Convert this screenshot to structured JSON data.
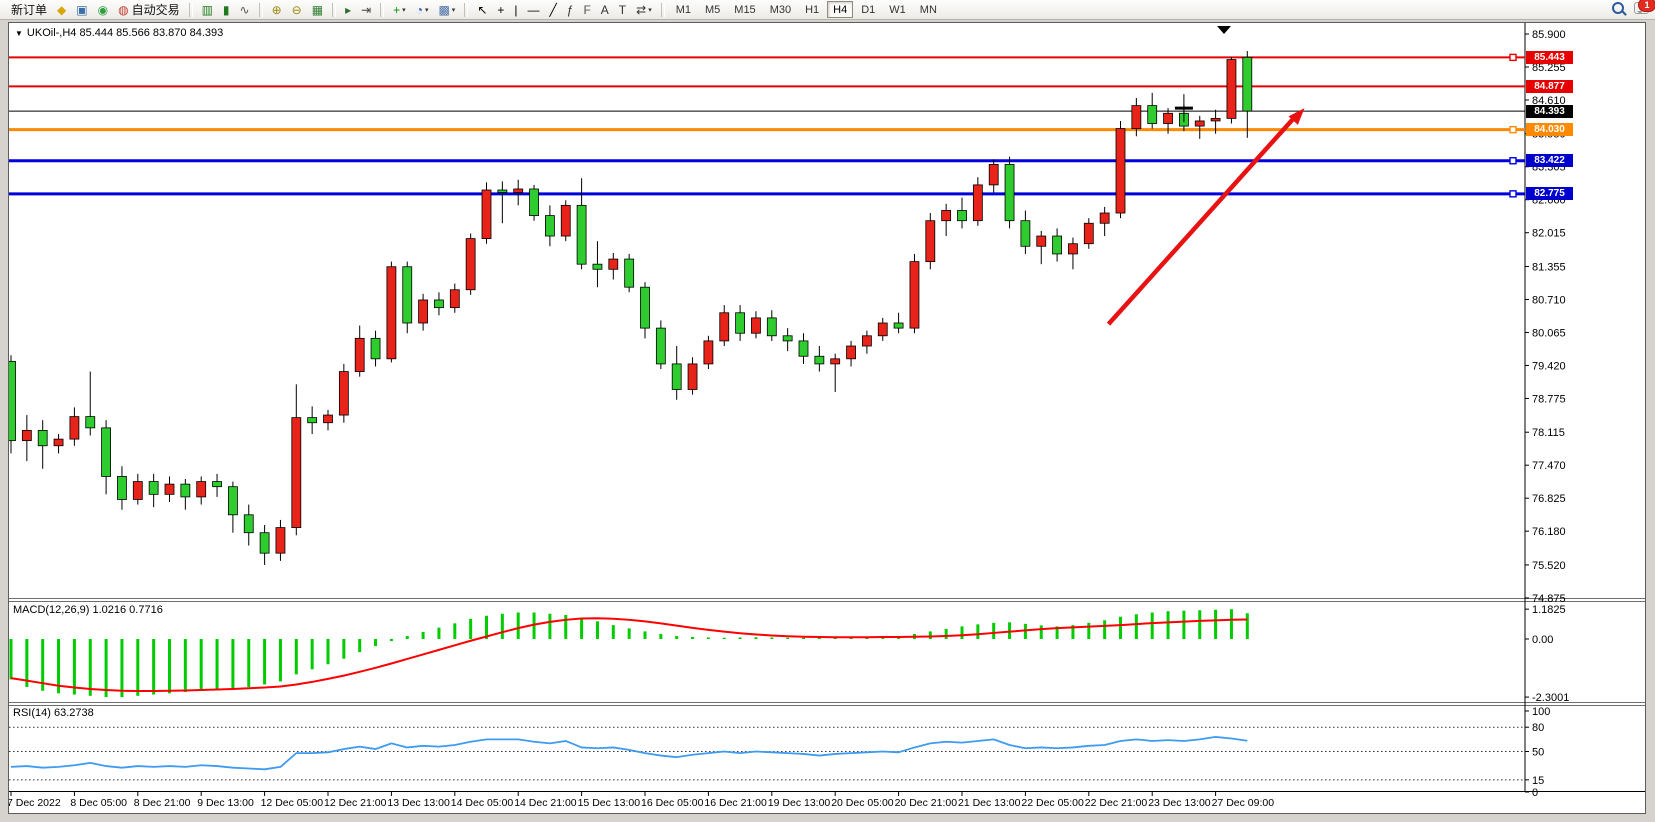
{
  "toolbar": {
    "notification_count": "1",
    "groups": [
      {
        "items": [
          {
            "name": "new-order-button",
            "label": "新订单",
            "interactable": true
          },
          {
            "name": "gold-bars-icon",
            "glyph": "◆",
            "color": "#d9a60a",
            "interactable": true
          },
          {
            "name": "user-terminal-icon",
            "glyph": "▣",
            "color": "#3a6ea5",
            "interactable": true
          },
          {
            "name": "radar-icon",
            "glyph": "◉",
            "color": "#2e9e3e",
            "interactable": true
          },
          {
            "name": "autotrade-button",
            "glyph": "◍",
            "color": "#c23b2e",
            "label": "自动交易",
            "interactable": true
          }
        ]
      },
      {
        "items": [
          {
            "name": "bar-chart-icon",
            "glyph": "▥",
            "color": "#1f7a1f",
            "interactable": true
          },
          {
            "name": "candlestick-chart-icon",
            "glyph": "▮",
            "color": "#1f7a1f",
            "interactable": true
          },
          {
            "name": "line-chart-icon",
            "glyph": "∿",
            "color": "#555555",
            "interactable": true
          }
        ]
      },
      {
        "items": [
          {
            "name": "zoom-in-icon",
            "glyph": "⊕",
            "color": "#9a8a10",
            "interactable": true
          },
          {
            "name": "zoom-out-icon",
            "glyph": "⊖",
            "color": "#9a8a10",
            "interactable": true
          },
          {
            "name": "tile-windows-icon",
            "glyph": "▦",
            "color": "#2e7d32",
            "interactable": true
          }
        ]
      },
      {
        "items": [
          {
            "name": "auto-scroll-icon",
            "glyph": "▸",
            "color": "#2b6e2b",
            "interactable": true
          },
          {
            "name": "chart-shift-icon",
            "glyph": "⇥",
            "color": "#444444",
            "interactable": true
          }
        ]
      },
      {
        "items": [
          {
            "name": "add-indicator-icon",
            "glyph": "+",
            "color": "#0a8f0a",
            "dropdown": true,
            "interactable": true
          },
          {
            "name": "period-clock-icon",
            "glyph": "◔",
            "color": "#1a56c4",
            "dropdown": true,
            "interactable": true
          },
          {
            "name": "template-icon",
            "glyph": "▩",
            "color": "#4a6ea5",
            "dropdown": true,
            "interactable": true
          }
        ]
      },
      {
        "items": [
          {
            "name": "cursor-icon",
            "glyph": "↖",
            "color": "#000000",
            "interactable": true
          },
          {
            "name": "crosshair-icon",
            "glyph": "+",
            "color": "#000000",
            "interactable": true
          },
          {
            "name": "vertical-line-icon",
            "glyph": "|",
            "color": "#000000",
            "interactable": true
          },
          {
            "name": "horizontal-line-icon",
            "glyph": "—",
            "color": "#000000",
            "interactable": true
          },
          {
            "name": "trendline-icon",
            "glyph": "╱",
            "color": "#000000",
            "interactable": true
          },
          {
            "name": "fibonacci-icon",
            "glyph": "ƒ",
            "color": "#333333",
            "interactable": true
          },
          {
            "name": "fibo-expansion-icon",
            "glyph": "F",
            "color": "#555555",
            "interactable": true
          },
          {
            "name": "text-icon",
            "glyph": "A",
            "color": "#333333",
            "interactable": true
          },
          {
            "name": "text-label-icon",
            "glyph": "T",
            "color": "#333333",
            "interactable": true
          },
          {
            "name": "arrows-shapes-icon",
            "glyph": "⇄",
            "color": "#333333",
            "dropdown": true,
            "interactable": true
          }
        ]
      }
    ],
    "timeframes": [
      "M1",
      "M5",
      "M15",
      "M30",
      "H1",
      "H4",
      "D1",
      "W1",
      "MN"
    ],
    "active_timeframe": "H4"
  },
  "chart": {
    "title_text": "UKOil-,H4  85.444 85.566 83.870 84.393",
    "symbol": "UKOil-",
    "timeframe": "H4",
    "ohlc": {
      "open": "85.444",
      "high": "85.566",
      "low": "83.870",
      "close": "84.393"
    }
  },
  "chart_data": {
    "type": "candlestick",
    "symbol": "UKOil-",
    "period": "H4",
    "price_axis_ticks": [
      "85.900",
      "85.255",
      "84.610",
      "83.950",
      "83.305",
      "82.660",
      "82.015",
      "81.355",
      "80.710",
      "80.065",
      "79.420",
      "78.775",
      "78.115",
      "77.470",
      "76.825",
      "76.180",
      "75.520",
      "74.875"
    ],
    "price_axis_range": [
      74.875,
      85.9
    ],
    "time_labels": [
      "7 Dec 2022",
      "8 Dec 05:00",
      "8 Dec 21:00",
      "9 Dec 13:00",
      "12 Dec 05:00",
      "12 Dec 21:00",
      "13 Dec 13:00",
      "14 Dec 05:00",
      "14 Dec 21:00",
      "15 Dec 13:00",
      "16 Dec 05:00",
      "16 Dec 21:00",
      "19 Dec 13:00",
      "20 Dec 05:00",
      "20 Dec 21:00",
      "21 Dec 13:00",
      "22 Dec 05:00",
      "22 Dec 21:00",
      "23 Dec 13:00",
      "27 Dec 09:00"
    ],
    "time_label_candle_indices": [
      0,
      4,
      8,
      12,
      16,
      20,
      24,
      28,
      32,
      36,
      40,
      44,
      48,
      52,
      56,
      60,
      64,
      68,
      72,
      76
    ],
    "colors": {
      "bull_candle": "#e8231a",
      "bear_candle": "#2ecc2e",
      "candle_outline": "#000000",
      "macd_histogram": "#00cc00",
      "macd_signal": "#ff0000",
      "rsi_line": "#3e9bf0",
      "annotation_arrow": "#e81212",
      "level_red": "#e60000",
      "level_orange": "#ff8a00",
      "level_blue": "#0000dd",
      "price_marker": "#000000"
    },
    "candles": [
      [
        79.5,
        79.62,
        77.7,
        77.95
      ],
      [
        77.95,
        78.45,
        77.55,
        78.15
      ],
      [
        78.15,
        78.35,
        77.4,
        77.85
      ],
      [
        77.85,
        78.08,
        77.7,
        77.98
      ],
      [
        77.98,
        78.6,
        77.85,
        78.42
      ],
      [
        78.42,
        79.3,
        78.05,
        78.2
      ],
      [
        78.2,
        78.35,
        76.9,
        77.25
      ],
      [
        77.25,
        77.45,
        76.6,
        76.8
      ],
      [
        76.8,
        77.3,
        76.7,
        77.15
      ],
      [
        77.15,
        77.3,
        76.65,
        76.9
      ],
      [
        76.9,
        77.25,
        76.75,
        77.1
      ],
      [
        77.1,
        77.2,
        76.6,
        76.85
      ],
      [
        76.85,
        77.25,
        76.7,
        77.15
      ],
      [
        77.15,
        77.3,
        76.85,
        77.05
      ],
      [
        77.05,
        77.15,
        76.15,
        76.5
      ],
      [
        76.5,
        76.7,
        75.9,
        76.15
      ],
      [
        76.15,
        76.3,
        75.52,
        75.75
      ],
      [
        75.75,
        76.4,
        75.6,
        76.25
      ],
      [
        76.25,
        79.05,
        76.1,
        78.4
      ],
      [
        78.4,
        78.62,
        78.08,
        78.3
      ],
      [
        78.3,
        78.55,
        78.15,
        78.45
      ],
      [
        78.45,
        79.45,
        78.3,
        79.3
      ],
      [
        79.3,
        80.2,
        79.2,
        79.95
      ],
      [
        79.95,
        80.1,
        79.4,
        79.55
      ],
      [
        79.55,
        81.45,
        79.48,
        81.35
      ],
      [
        81.35,
        81.45,
        80.05,
        80.25
      ],
      [
        80.25,
        80.82,
        80.1,
        80.7
      ],
      [
        80.7,
        80.85,
        80.4,
        80.55
      ],
      [
        80.55,
        81.02,
        80.45,
        80.9
      ],
      [
        80.9,
        82.0,
        80.8,
        81.9
      ],
      [
        81.9,
        83.0,
        81.8,
        82.85
      ],
      [
        82.85,
        83.02,
        82.2,
        82.8
      ],
      [
        82.8,
        83.05,
        82.55,
        82.87
      ],
      [
        82.87,
        82.95,
        82.25,
        82.35
      ],
      [
        82.35,
        82.55,
        81.75,
        81.95
      ],
      [
        81.95,
        82.65,
        81.85,
        82.55
      ],
      [
        82.55,
        83.08,
        81.3,
        81.4
      ],
      [
        81.4,
        81.85,
        80.95,
        81.3
      ],
      [
        81.3,
        81.62,
        81.1,
        81.5
      ],
      [
        81.5,
        81.6,
        80.85,
        80.95
      ],
      [
        80.95,
        81.05,
        79.95,
        80.15
      ],
      [
        80.15,
        80.3,
        79.35,
        79.45
      ],
      [
        79.45,
        79.8,
        78.75,
        78.95
      ],
      [
        78.95,
        79.58,
        78.85,
        79.45
      ],
      [
        79.45,
        80.0,
        79.35,
        79.9
      ],
      [
        79.9,
        80.6,
        79.8,
        80.45
      ],
      [
        80.45,
        80.6,
        79.9,
        80.05
      ],
      [
        80.05,
        80.48,
        79.95,
        80.35
      ],
      [
        80.35,
        80.5,
        79.9,
        80.0
      ],
      [
        80.0,
        80.15,
        79.7,
        79.9
      ],
      [
        79.9,
        80.05,
        79.45,
        79.6
      ],
      [
        79.6,
        79.8,
        79.3,
        79.45
      ],
      [
        79.45,
        79.65,
        78.9,
        79.55
      ],
      [
        79.55,
        79.9,
        79.4,
        79.8
      ],
      [
        79.8,
        80.1,
        79.65,
        80.0
      ],
      [
        80.0,
        80.35,
        79.9,
        80.25
      ],
      [
        80.25,
        80.45,
        80.05,
        80.15
      ],
      [
        80.15,
        81.6,
        80.05,
        81.45
      ],
      [
        81.45,
        82.4,
        81.3,
        82.25
      ],
      [
        82.25,
        82.58,
        81.95,
        82.45
      ],
      [
        82.45,
        82.7,
        82.1,
        82.25
      ],
      [
        82.25,
        83.1,
        82.15,
        82.95
      ],
      [
        82.95,
        83.45,
        82.8,
        83.35
      ],
      [
        83.35,
        83.5,
        82.1,
        82.25
      ],
      [
        82.25,
        82.45,
        81.6,
        81.75
      ],
      [
        81.75,
        82.05,
        81.4,
        81.95
      ],
      [
        81.95,
        82.1,
        81.45,
        81.6
      ],
      [
        81.6,
        81.92,
        81.3,
        81.8
      ],
      [
        81.8,
        82.3,
        81.7,
        82.2
      ],
      [
        82.2,
        82.52,
        81.95,
        82.4
      ],
      [
        82.4,
        84.2,
        82.3,
        84.05
      ],
      [
        84.05,
        84.65,
        83.9,
        84.5
      ],
      [
        84.5,
        84.75,
        84.05,
        84.15
      ],
      [
        84.15,
        84.45,
        83.95,
        84.35
      ],
      [
        84.35,
        84.52,
        84.0,
        84.1
      ],
      [
        84.1,
        84.3,
        83.85,
        84.2
      ],
      [
        84.2,
        84.42,
        83.95,
        84.25
      ],
      [
        84.25,
        85.45,
        84.15,
        85.4
      ],
      [
        85.444,
        85.566,
        83.87,
        84.393
      ]
    ],
    "level_lines": [
      {
        "name": "resistance-line-85443",
        "price": 85.443,
        "color": "#e60000",
        "width": 2,
        "tag": "85.443",
        "tag_bg": "#e60000",
        "anchor": true
      },
      {
        "name": "resistance-line-84877",
        "price": 84.877,
        "color": "#e60000",
        "width": 2,
        "tag": "84.877",
        "tag_bg": "#e60000",
        "anchor": false
      },
      {
        "name": "current-price-line",
        "price": 84.393,
        "color": "#000000",
        "width": 1,
        "tag": "84.393",
        "tag_bg": "#000000",
        "anchor": false
      },
      {
        "name": "support-line-84030",
        "price": 84.03,
        "color": "#ff8a00",
        "width": 3,
        "tag": "84.030",
        "tag_bg": "#ff8a00",
        "anchor": true
      },
      {
        "name": "support-line-83422",
        "price": 83.422,
        "color": "#0000dd",
        "width": 3,
        "tag": "83.422",
        "tag_bg": "#0000cc",
        "anchor": true
      },
      {
        "name": "support-line-82775",
        "price": 82.775,
        "color": "#0000dd",
        "width": 3,
        "tag": "82.775",
        "tag_bg": "#0000cc",
        "anchor": true
      }
    ],
    "annotations": {
      "arrow": {
        "from_candle_index": 70,
        "from_price": 81.4,
        "to_price": 84.45,
        "color": "#e81212"
      },
      "crosshair_mark": {
        "candle_index": 74,
        "price": 84.45
      },
      "chart_shift_marker": true
    },
    "macd": {
      "label": "MACD(12,26,9) 1.0216 0.7716",
      "name": "MACD(12,26,9)",
      "macd_value": "1.0216",
      "signal_value": "0.7716",
      "axis_ticks": [
        "1.1825",
        "0.00",
        "-2.3001"
      ],
      "axis_tick_values": [
        1.1825,
        0,
        -2.3001
      ],
      "histogram": [
        -1.6,
        -1.9,
        -2.05,
        -2.15,
        -2.2,
        -2.25,
        -2.3,
        -2.3,
        -2.25,
        -2.2,
        -2.15,
        -2.1,
        -2.05,
        -2.0,
        -1.95,
        -1.9,
        -1.8,
        -1.68,
        -1.4,
        -1.2,
        -1.0,
        -0.78,
        -0.52,
        -0.28,
        -0.08,
        0.12,
        0.28,
        0.45,
        0.62,
        0.8,
        0.92,
        1.0,
        1.05,
        1.05,
        1.0,
        0.95,
        0.85,
        0.7,
        0.55,
        0.42,
        0.3,
        0.2,
        0.12,
        0.08,
        0.06,
        0.05,
        0.06,
        0.07,
        0.06,
        0.05,
        0.05,
        0.04,
        0.05,
        0.06,
        0.08,
        0.1,
        0.12,
        0.2,
        0.3,
        0.4,
        0.5,
        0.58,
        0.64,
        0.66,
        0.6,
        0.54,
        0.5,
        0.55,
        0.64,
        0.74,
        0.88,
        0.98,
        1.05,
        1.1,
        1.12,
        1.14,
        1.16,
        1.18,
        1.02
      ],
      "signal": [
        -1.55,
        -1.65,
        -1.75,
        -1.85,
        -1.92,
        -1.98,
        -2.02,
        -2.05,
        -2.06,
        -2.06,
        -2.05,
        -2.04,
        -2.02,
        -2.0,
        -1.98,
        -1.95,
        -1.92,
        -1.88,
        -1.8,
        -1.7,
        -1.58,
        -1.45,
        -1.3,
        -1.14,
        -0.97,
        -0.79,
        -0.61,
        -0.43,
        -0.25,
        -0.07,
        0.1,
        0.27,
        0.43,
        0.57,
        0.68,
        0.76,
        0.81,
        0.82,
        0.8,
        0.76,
        0.7,
        0.62,
        0.53,
        0.44,
        0.36,
        0.29,
        0.23,
        0.18,
        0.14,
        0.11,
        0.09,
        0.08,
        0.07,
        0.07,
        0.07,
        0.08,
        0.08,
        0.09,
        0.1,
        0.12,
        0.15,
        0.19,
        0.24,
        0.29,
        0.34,
        0.39,
        0.43,
        0.46,
        0.49,
        0.52,
        0.55,
        0.59,
        0.63,
        0.66,
        0.69,
        0.72,
        0.74,
        0.76,
        0.77
      ]
    },
    "rsi": {
      "label": "RSI(14) 63.2738",
      "name": "RSI(14)",
      "value": "63.2738",
      "axis_ticks": [
        "100",
        "80",
        "50",
        "15",
        "0"
      ],
      "axis_tick_values": [
        100,
        80,
        50,
        15,
        0
      ],
      "dashed_levels": [
        80,
        50,
        15
      ],
      "values": [
        31,
        32,
        30,
        31,
        33,
        36,
        32,
        30,
        32,
        31,
        32,
        31,
        33,
        32,
        30,
        29,
        28,
        31,
        48,
        48,
        49,
        53,
        56,
        53,
        60,
        55,
        57,
        56,
        58,
        62,
        65,
        65,
        65,
        62,
        60,
        63,
        55,
        54,
        55,
        52,
        48,
        45,
        43,
        46,
        48,
        50,
        48,
        50,
        49,
        48,
        47,
        45,
        47,
        48,
        49,
        50,
        49,
        55,
        60,
        62,
        61,
        63,
        65,
        58,
        54,
        55,
        54,
        55,
        57,
        58,
        63,
        65,
        63,
        64,
        63,
        65,
        68,
        66,
        63.27
      ]
    }
  }
}
